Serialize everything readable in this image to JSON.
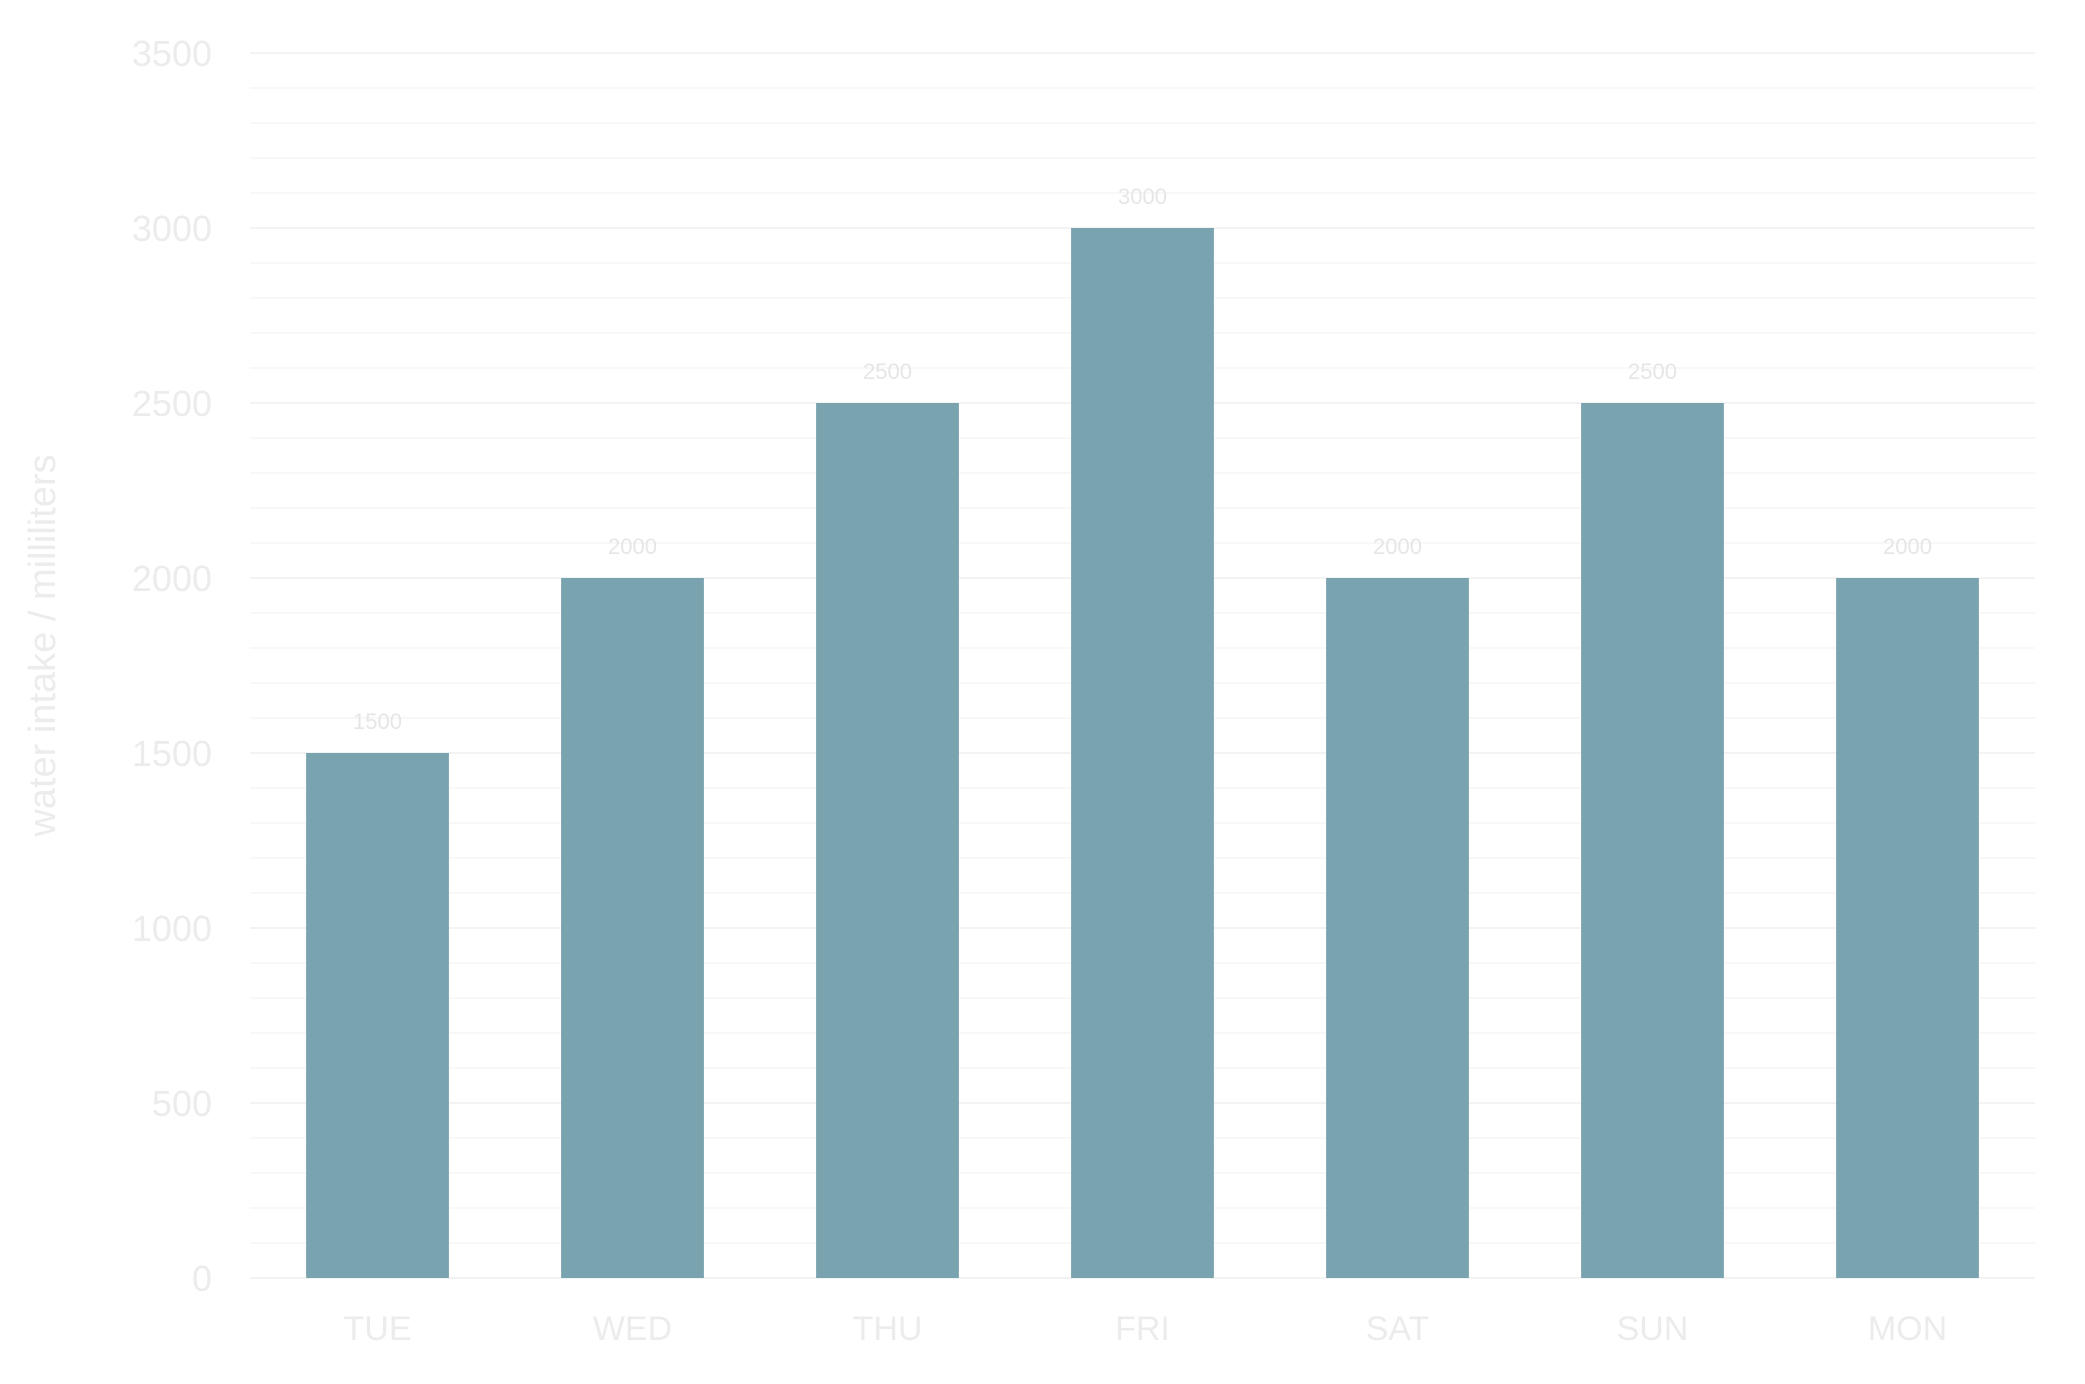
{
  "chart_data": {
    "type": "bar",
    "title": "",
    "xlabel": "",
    "ylabel": "water intake / milliliters",
    "categories": [
      "TUE",
      "WED",
      "THU",
      "FRI",
      "SAT",
      "SUN",
      "MON"
    ],
    "values": [
      1500,
      2000,
      2500,
      3000,
      2000,
      2500,
      2000
    ],
    "data_labels": [
      "1500",
      "2000",
      "2500",
      "3000",
      "2000",
      "2500",
      "2000"
    ],
    "ylim": [
      0,
      3500
    ],
    "yticks": [
      0,
      500,
      1000,
      1500,
      2000,
      2500,
      3000,
      3500
    ],
    "ytick_labels": [
      "0",
      "500",
      "1000",
      "1500",
      "2000",
      "2500",
      "3000",
      "3500"
    ],
    "grid": true,
    "minor_grid_step": 100,
    "bar_color": "#7aa3b0",
    "grid_color": "#f3f3f3",
    "text_color": "#ececec"
  }
}
